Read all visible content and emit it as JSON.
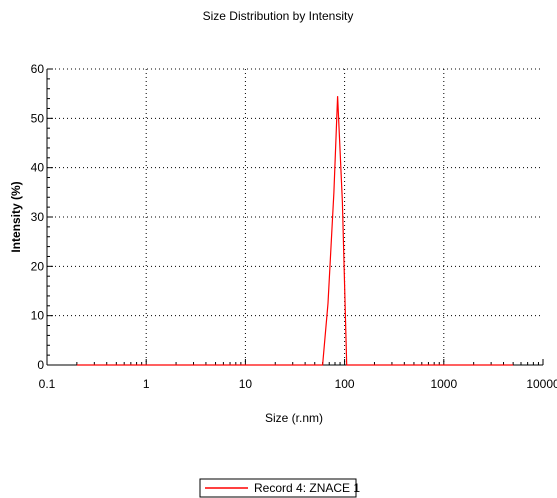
{
  "chart_data": {
    "type": "line",
    "title": "Size Distribution by Intensity",
    "xlabel": "Size (r.nm)",
    "ylabel": "Intensity (%)",
    "xscale": "log",
    "xlim": [
      0.1,
      10000
    ],
    "ylim": [
      0,
      60
    ],
    "xticks": [
      "0.1",
      "1",
      "10",
      "100",
      "1000",
      "10000"
    ],
    "yticks": [
      "0",
      "10",
      "20",
      "30",
      "40",
      "50",
      "60"
    ],
    "grid": true,
    "legend_position": "bottom-center",
    "colors": {
      "series": "#ff0000",
      "grid": "#000000",
      "axis": "#000000"
    },
    "series": [
      {
        "name": "Record 4: ZNACE 1",
        "x": [
          0.2,
          1,
          10,
          50,
          60,
          68,
          78,
          85,
          95,
          105,
          112,
          120,
          1000,
          5000
        ],
        "y": [
          0,
          0,
          0,
          0,
          0,
          12.5,
          35,
          54.5,
          33,
          0,
          0,
          0,
          0,
          0
        ]
      }
    ]
  }
}
